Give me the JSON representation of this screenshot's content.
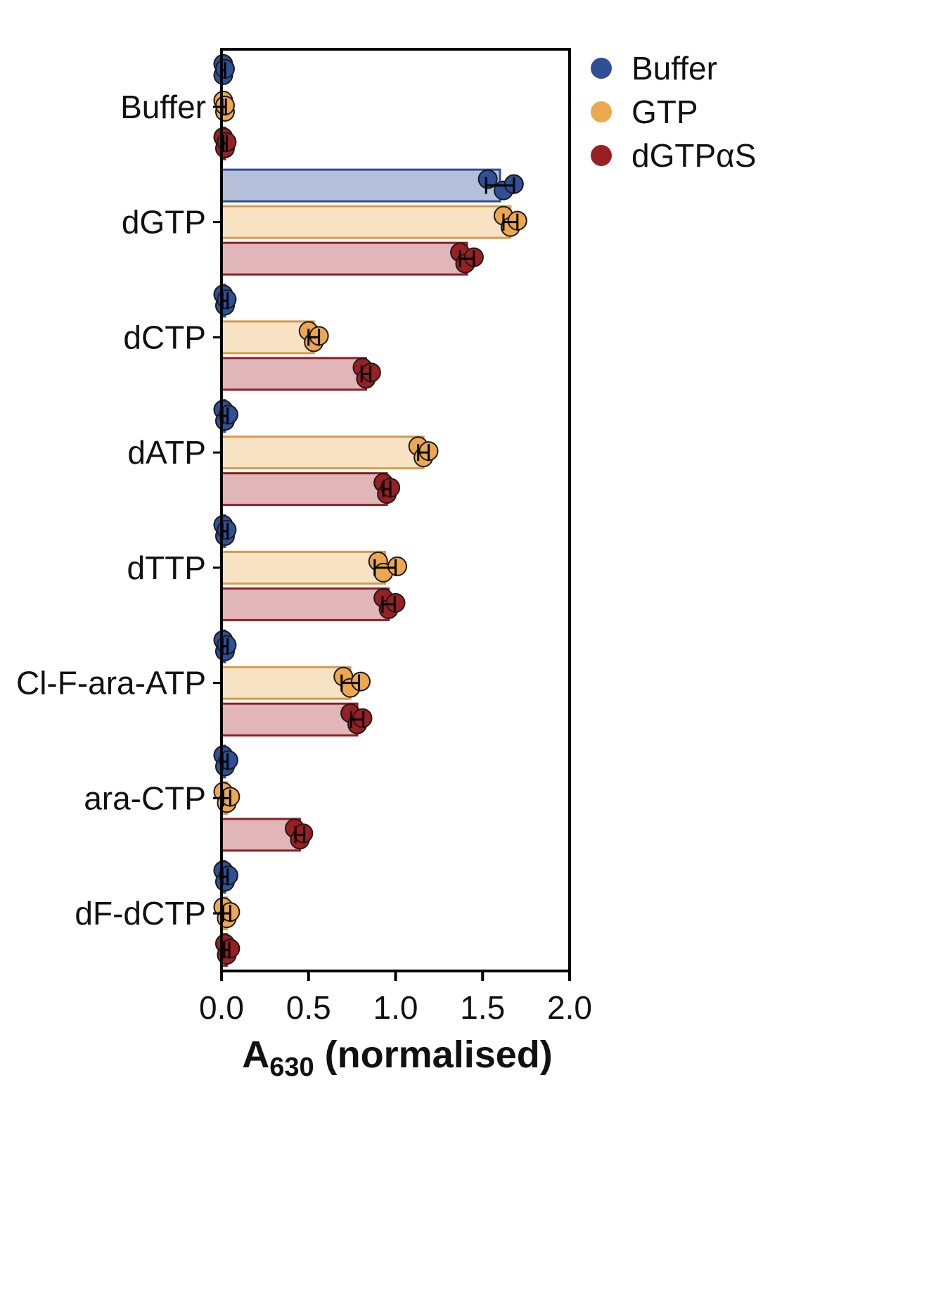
{
  "figure": {
    "background": "#ffffff"
  },
  "axis": {
    "xlabel_prefix": "A",
    "xlabel_sub": "630",
    "xlabel_suffix": " (normalised)"
  },
  "legend": {
    "items": [
      {
        "label": "Buffer",
        "color": "#2f4f96"
      },
      {
        "label": "GTP",
        "color": "#eda74f"
      },
      {
        "label": "dGTPαS",
        "color": "#9a1f23"
      }
    ]
  },
  "chart_data": {
    "type": "bar",
    "orientation": "horizontal",
    "title": "",
    "xlabel": "A630 (normalised)",
    "ylabel": "",
    "xlim": [
      0.0,
      2.0
    ],
    "xticks": [
      0.0,
      0.5,
      1.0,
      1.5,
      2.0
    ],
    "grid": false,
    "legend_position": "upper right",
    "categories": [
      "Buffer",
      "dGTP",
      "dCTP",
      "dATP",
      "dTTP",
      "Cl-F-ara-ATP",
      "ara-CTP",
      "dF-dCTP"
    ],
    "series": [
      {
        "name": "Buffer",
        "dot_color": "#2f4f96",
        "bar_fill": "#b5bfd9",
        "bar_edge": "#2f4f96",
        "means": [
          0.01,
          1.6,
          0.02,
          0.02,
          0.02,
          0.02,
          0.02,
          0.02
        ],
        "errors": [
          0.01,
          0.08,
          0.015,
          0.015,
          0.015,
          0.015,
          0.015,
          0.015
        ],
        "points": [
          [
            0.01,
            0.01,
            0.02
          ],
          [
            1.53,
            1.62,
            1.68
          ],
          [
            0.01,
            0.02,
            0.03
          ],
          [
            0.01,
            0.02,
            0.04
          ],
          [
            0.01,
            0.02,
            0.03
          ],
          [
            0.01,
            0.02,
            0.03
          ],
          [
            0.01,
            0.02,
            0.04
          ],
          [
            0.01,
            0.02,
            0.04
          ]
        ]
      },
      {
        "name": "GTP",
        "dot_color": "#eda74f",
        "bar_fill": "#f7e3c3",
        "bar_edge": "#d89a4a",
        "means": [
          0.015,
          1.66,
          0.53,
          1.16,
          0.94,
          0.74,
          0.03,
          0.03
        ],
        "errors": [
          0.01,
          0.04,
          0.03,
          0.03,
          0.06,
          0.05,
          0.02,
          0.02
        ],
        "points": [
          [
            0.01,
            0.02,
            0.02
          ],
          [
            1.62,
            1.66,
            1.7
          ],
          [
            0.5,
            0.53,
            0.56
          ],
          [
            1.13,
            1.16,
            1.19
          ],
          [
            0.9,
            0.93,
            1.01
          ],
          [
            0.7,
            0.74,
            0.8
          ],
          [
            0.01,
            0.03,
            0.05
          ],
          [
            0.01,
            0.03,
            0.05
          ]
        ]
      },
      {
        "name": "dGTPαS",
        "dot_color": "#9a1f23",
        "bar_fill": "#e0b6b8",
        "bar_edge": "#8e1f26",
        "means": [
          0.02,
          1.41,
          0.83,
          0.95,
          0.96,
          0.78,
          0.45,
          0.03
        ],
        "errors": [
          0.01,
          0.04,
          0.025,
          0.02,
          0.035,
          0.035,
          0.025,
          0.015
        ],
        "points": [
          [
            0.01,
            0.02,
            0.03
          ],
          [
            1.37,
            1.4,
            1.45
          ],
          [
            0.81,
            0.83,
            0.86
          ],
          [
            0.93,
            0.95,
            0.97
          ],
          [
            0.93,
            0.96,
            1.0
          ],
          [
            0.74,
            0.78,
            0.81
          ],
          [
            0.42,
            0.45,
            0.47
          ],
          [
            0.02,
            0.03,
            0.05
          ]
        ]
      }
    ]
  }
}
